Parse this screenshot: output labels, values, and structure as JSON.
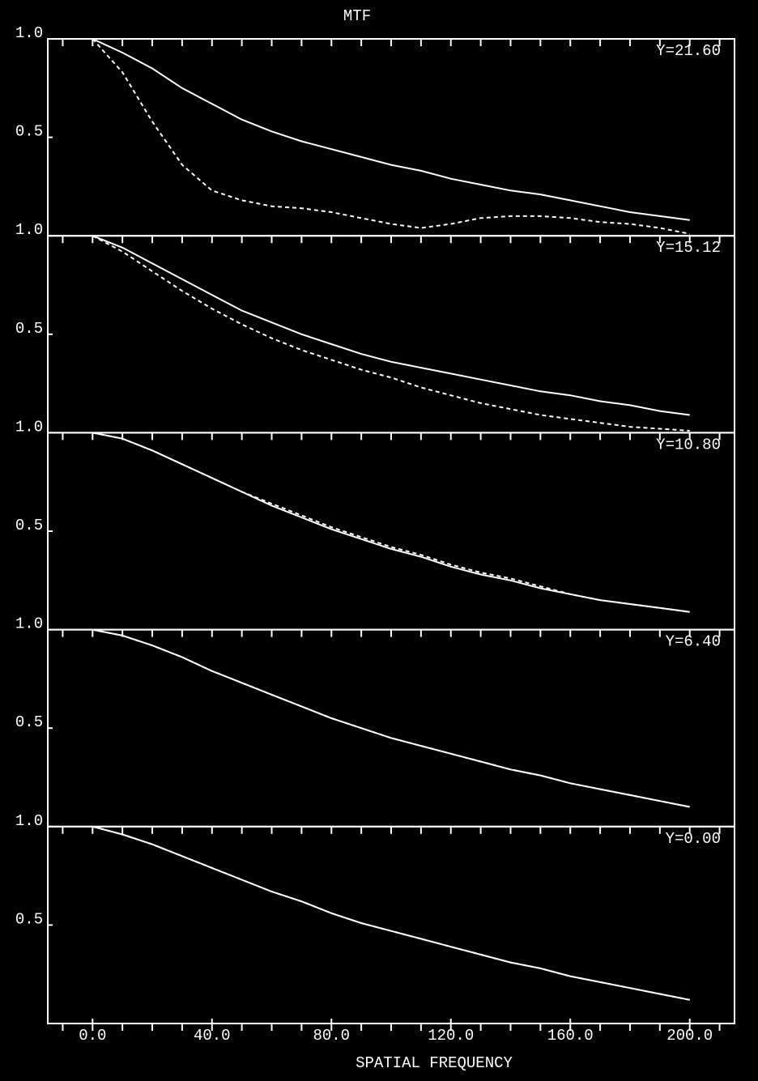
{
  "chart_data": [
    {
      "type": "line",
      "title": "MTF",
      "annotation": "Y=21.60",
      "x": [
        0,
        10,
        20,
        30,
        40,
        50,
        60,
        70,
        80,
        90,
        100,
        110,
        120,
        130,
        140,
        150,
        160,
        170,
        180,
        190,
        200
      ],
      "xlim": [
        -15,
        215
      ],
      "xminorticks": [
        -10,
        0,
        10,
        20,
        30,
        40,
        50,
        60,
        70,
        80,
        90,
        100,
        110,
        120,
        130,
        140,
        150,
        160,
        170,
        180,
        190,
        200,
        210
      ],
      "ylim": [
        0,
        1
      ],
      "yticks": [
        {
          "value": 1,
          "label": "1.0"
        },
        {
          "value": 0.5,
          "label": "0.5"
        }
      ],
      "series": [
        {
          "color": "#ffffff",
          "style": "solid",
          "values": [
            1.0,
            0.93,
            0.85,
            0.75,
            0.67,
            0.59,
            0.53,
            0.48,
            0.44,
            0.4,
            0.36,
            0.33,
            0.29,
            0.26,
            0.23,
            0.21,
            0.18,
            0.15,
            0.12,
            0.1,
            0.08
          ]
        },
        {
          "color": "#ffffff",
          "style": "dashed",
          "values": [
            1.0,
            0.83,
            0.58,
            0.36,
            0.23,
            0.18,
            0.15,
            0.14,
            0.12,
            0.09,
            0.06,
            0.04,
            0.06,
            0.09,
            0.1,
            0.1,
            0.09,
            0.07,
            0.06,
            0.04,
            0.01
          ]
        }
      ]
    },
    {
      "type": "line",
      "annotation": "Y=15.12",
      "x": [
        0,
        10,
        20,
        30,
        40,
        50,
        60,
        70,
        80,
        90,
        100,
        110,
        120,
        130,
        140,
        150,
        160,
        170,
        180,
        190,
        200
      ],
      "xlim": [
        -15,
        215
      ],
      "xminorticks": [
        -10,
        0,
        10,
        20,
        30,
        40,
        50,
        60,
        70,
        80,
        90,
        100,
        110,
        120,
        130,
        140,
        150,
        160,
        170,
        180,
        190,
        200,
        210
      ],
      "ylim": [
        0,
        1
      ],
      "yticks": [
        {
          "value": 1,
          "label": "1.0"
        },
        {
          "value": 0.5,
          "label": "0.5"
        }
      ],
      "series": [
        {
          "color": "#ffffff",
          "style": "solid",
          "values": [
            1.0,
            0.94,
            0.86,
            0.78,
            0.7,
            0.62,
            0.56,
            0.5,
            0.45,
            0.4,
            0.36,
            0.33,
            0.3,
            0.27,
            0.24,
            0.21,
            0.19,
            0.16,
            0.14,
            0.11,
            0.09
          ]
        },
        {
          "color": "#ffffff",
          "style": "dashed",
          "values": [
            1.0,
            0.92,
            0.82,
            0.72,
            0.63,
            0.55,
            0.48,
            0.42,
            0.37,
            0.32,
            0.28,
            0.23,
            0.19,
            0.15,
            0.12,
            0.09,
            0.07,
            0.05,
            0.03,
            0.02,
            0.01
          ]
        }
      ]
    },
    {
      "type": "line",
      "annotation": "Y=10.80",
      "x": [
        0,
        10,
        20,
        30,
        40,
        50,
        60,
        70,
        80,
        90,
        100,
        110,
        120,
        130,
        140,
        150,
        160,
        170,
        180,
        190,
        200
      ],
      "xlim": [
        -15,
        215
      ],
      "xminorticks": [
        -10,
        0,
        10,
        20,
        30,
        40,
        50,
        60,
        70,
        80,
        90,
        100,
        110,
        120,
        130,
        140,
        150,
        160,
        170,
        180,
        190,
        200,
        210
      ],
      "ylim": [
        0,
        1
      ],
      "yticks": [
        {
          "value": 1,
          "label": "1.0"
        },
        {
          "value": 0.5,
          "label": "0.5"
        }
      ],
      "series": [
        {
          "color": "#ffffff",
          "style": "solid",
          "values": [
            1.0,
            0.97,
            0.91,
            0.84,
            0.77,
            0.7,
            0.63,
            0.57,
            0.51,
            0.46,
            0.41,
            0.37,
            0.32,
            0.28,
            0.25,
            0.21,
            0.18,
            0.15,
            0.13,
            0.11,
            0.09
          ]
        },
        {
          "color": "#ffffff",
          "style": "dashed",
          "values": [
            1.0,
            0.97,
            0.91,
            0.84,
            0.77,
            0.7,
            0.64,
            0.58,
            0.52,
            0.47,
            0.42,
            0.38,
            0.33,
            0.29,
            0.26,
            0.22,
            0.18,
            0.15,
            0.13,
            0.11,
            0.09
          ]
        }
      ]
    },
    {
      "type": "line",
      "annotation": "Y=6.40",
      "x": [
        0,
        10,
        20,
        30,
        40,
        50,
        60,
        70,
        80,
        90,
        100,
        110,
        120,
        130,
        140,
        150,
        160,
        170,
        180,
        190,
        200
      ],
      "xlim": [
        -15,
        215
      ],
      "xminorticks": [
        -10,
        0,
        10,
        20,
        30,
        40,
        50,
        60,
        70,
        80,
        90,
        100,
        110,
        120,
        130,
        140,
        150,
        160,
        170,
        180,
        190,
        200,
        210
      ],
      "ylim": [
        0,
        1
      ],
      "yticks": [
        {
          "value": 1,
          "label": "1.0"
        },
        {
          "value": 0.5,
          "label": "0.5"
        }
      ],
      "series": [
        {
          "color": "#ffffff",
          "style": "solid",
          "values": [
            1.0,
            0.97,
            0.92,
            0.86,
            0.79,
            0.73,
            0.67,
            0.61,
            0.55,
            0.5,
            0.45,
            0.41,
            0.37,
            0.33,
            0.29,
            0.26,
            0.22,
            0.19,
            0.16,
            0.13,
            0.1
          ]
        },
        {
          "color": "#ffffff",
          "style": "dashed",
          "values": [
            1.0,
            0.97,
            0.92,
            0.86,
            0.79,
            0.73,
            0.67,
            0.61,
            0.55,
            0.5,
            0.45,
            0.41,
            0.37,
            0.33,
            0.29,
            0.26,
            0.22,
            0.19,
            0.16,
            0.13,
            0.1
          ]
        }
      ]
    },
    {
      "type": "line",
      "annotation": "Y=0.00",
      "xlabel": "SPATIAL FREQUENCY",
      "x": [
        0,
        10,
        20,
        30,
        40,
        50,
        60,
        70,
        80,
        90,
        100,
        110,
        120,
        130,
        140,
        150,
        160,
        170,
        180,
        190,
        200
      ],
      "xlim": [
        -15,
        215
      ],
      "xminorticks": [
        -10,
        0,
        10,
        20,
        30,
        40,
        50,
        60,
        70,
        80,
        90,
        100,
        110,
        120,
        130,
        140,
        150,
        160,
        170,
        180,
        190,
        200,
        210
      ],
      "xticks": [
        {
          "value": 0,
          "label": "0.0"
        },
        {
          "value": 40,
          "label": "40.0"
        },
        {
          "value": 80,
          "label": "80.0"
        },
        {
          "value": 120,
          "label": "120.0"
        },
        {
          "value": 160,
          "label": "160.0"
        },
        {
          "value": 200,
          "label": "200.0"
        }
      ],
      "ylim": [
        0,
        1
      ],
      "yticks": [
        {
          "value": 1,
          "label": "1.0"
        },
        {
          "value": 0.5,
          "label": "0.5"
        }
      ],
      "series": [
        {
          "color": "#ffffff",
          "style": "solid",
          "values": [
            1.0,
            0.96,
            0.91,
            0.85,
            0.79,
            0.73,
            0.67,
            0.62,
            0.56,
            0.51,
            0.47,
            0.43,
            0.39,
            0.35,
            0.31,
            0.28,
            0.24,
            0.21,
            0.18,
            0.15,
            0.12
          ]
        },
        {
          "color": "#ffffff",
          "style": "dashed",
          "values": [
            1.0,
            0.96,
            0.91,
            0.85,
            0.79,
            0.73,
            0.67,
            0.62,
            0.56,
            0.51,
            0.47,
            0.43,
            0.39,
            0.35,
            0.31,
            0.28,
            0.24,
            0.21,
            0.18,
            0.15,
            0.12
          ]
        }
      ]
    }
  ]
}
